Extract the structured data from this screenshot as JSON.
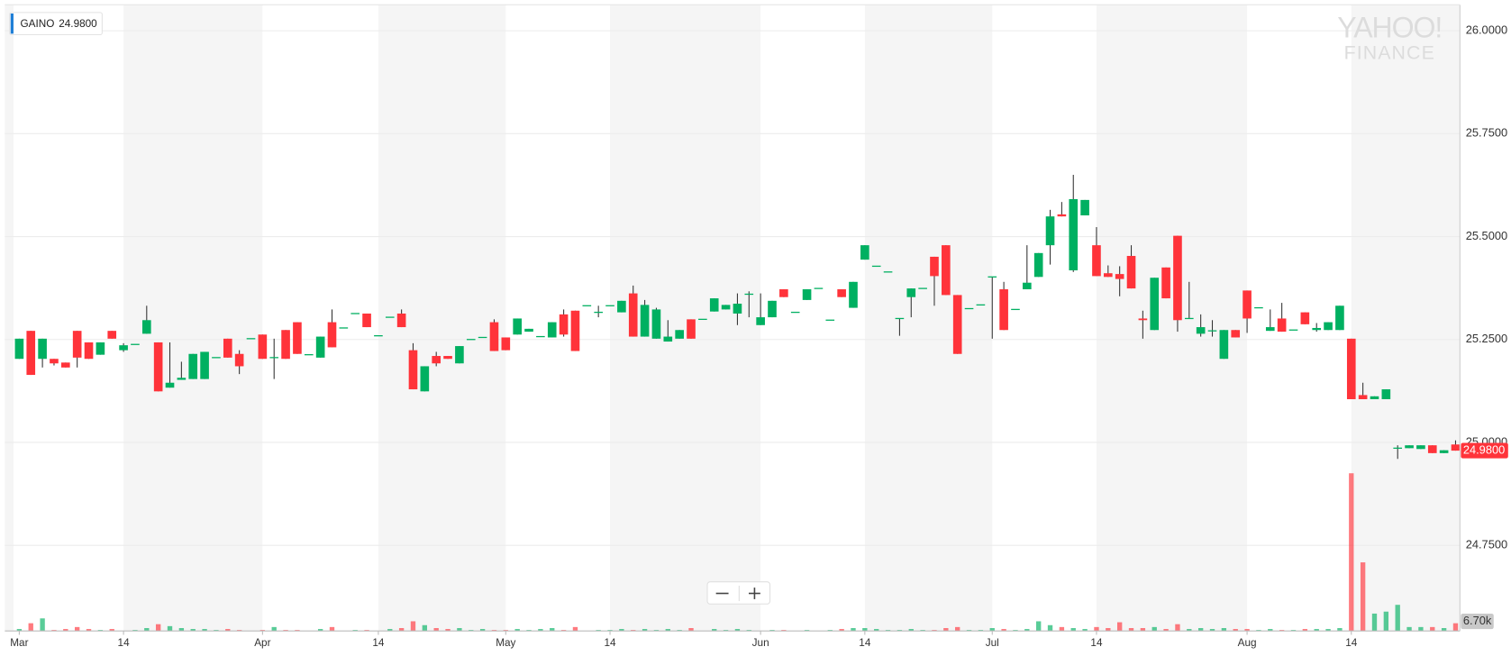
{
  "chart_data": {
    "type": "candlestick",
    "watermark": [
      "YAHOO!",
      "FINANCE"
    ],
    "categories": [
      "Mar",
      null,
      null,
      null,
      null,
      null,
      null,
      null,
      null,
      "14",
      null,
      null,
      null,
      null,
      null,
      null,
      null,
      null,
      null,
      null,
      null,
      "Apr",
      null,
      null,
      null,
      null,
      null,
      null,
      null,
      null,
      null,
      "14",
      null,
      null,
      null,
      null,
      null,
      null,
      null,
      null,
      null,
      null,
      "May",
      null,
      null,
      null,
      null,
      null,
      null,
      null,
      null,
      "14",
      null,
      null,
      null,
      null,
      null,
      null,
      null,
      null,
      null,
      null,
      null,
      null,
      "Jun",
      null,
      null,
      null,
      null,
      null,
      null,
      null,
      null,
      "14",
      null,
      null,
      null,
      null,
      null,
      null,
      null,
      null,
      null,
      null,
      "Jul",
      null,
      null,
      null,
      null,
      null,
      null,
      null,
      null,
      "14",
      null,
      null,
      null,
      null,
      null,
      null,
      null,
      null,
      null,
      null,
      null,
      null,
      "Aug",
      null,
      null,
      null,
      null,
      null,
      null,
      null,
      null,
      "14",
      null,
      null,
      null,
      null,
      null,
      null,
      null,
      null,
      null
    ],
    "ylim": [
      24.542,
      26.063
    ],
    "yticks": [
      {
        "value": 24.75,
        "label": "24.7500"
      },
      {
        "value": 25.0,
        "label": "25.0000"
      },
      {
        "value": 25.25,
        "label": "25.2500"
      },
      {
        "value": 25.5,
        "label": "25.5000"
      },
      {
        "value": 25.75,
        "label": "25.7500"
      },
      {
        "value": 26.0,
        "label": "26.0000"
      }
    ],
    "y2lim": [
      0,
      544000
    ],
    "grid": true,
    "series": [
      {
        "name": "GAINO",
        "up_color": "#00b061",
        "down_color": "#ff333a",
        "value_label": "24.9800",
        "volume_label": "6.70k",
        "open": [
          25.203,
          25.271,
          25.203,
          25.203,
          25.194,
          25.271,
          25.243,
          25.213,
          25.271,
          25.224,
          25.238,
          25.264,
          25.243,
          25.133,
          25.152,
          25.154,
          25.154,
          25.206,
          25.252,
          25.215,
          25.252,
          25.262,
          25.206,
          25.273,
          25.292,
          25.213,
          25.206,
          25.292,
          25.278,
          25.313,
          25.313,
          25.259,
          25.304,
          25.313,
          25.224,
          25.124,
          25.21,
          25.21,
          25.192,
          25.25,
          25.255,
          25.292,
          25.255,
          25.262,
          25.269,
          25.257,
          25.255,
          25.311,
          25.32,
          25.332,
          25.316,
          25.332,
          25.316,
          25.362,
          25.257,
          25.252,
          25.245,
          25.252,
          25.299,
          25.299,
          25.318,
          25.323,
          25.313,
          25.36,
          25.285,
          25.304,
          25.372,
          25.316,
          25.346,
          25.374,
          25.297,
          25.372,
          25.327,
          25.444,
          25.428,
          25.414,
          25.301,
          25.353,
          25.374,
          25.451,
          25.479,
          25.358,
          25.325,
          25.334,
          25.402,
          25.372,
          25.323,
          25.372,
          25.402,
          25.479,
          25.554,
          25.418,
          25.5515,
          25.479,
          25.411,
          25.409,
          25.453,
          25.301,
          25.273,
          25.425,
          25.502,
          25.301,
          25.264,
          25.271,
          25.203,
          25.273,
          25.369,
          25.327,
          25.271,
          25.301,
          25.273,
          25.316,
          25.273,
          25.273,
          25.273,
          25.252,
          25.115,
          25.105,
          25.105,
          24.986,
          24.986,
          24.984,
          24.993,
          24.974,
          24.995
        ],
        "high": [
          25.252,
          25.271,
          25.252,
          25.203,
          25.194,
          25.271,
          25.243,
          25.243,
          25.271,
          25.241,
          25.238,
          25.332,
          25.243,
          25.243,
          25.196,
          25.215,
          25.22,
          25.206,
          25.252,
          25.224,
          25.252,
          25.262,
          25.252,
          25.273,
          25.292,
          25.213,
          25.257,
          25.323,
          25.278,
          25.313,
          25.313,
          25.259,
          25.304,
          25.323,
          25.241,
          25.185,
          25.22,
          25.21,
          25.234,
          25.25,
          25.255,
          25.299,
          25.255,
          25.301,
          25.276,
          25.257,
          25.292,
          25.323,
          25.32,
          25.332,
          25.332,
          25.332,
          25.344,
          25.381,
          25.346,
          25.327,
          25.297,
          25.273,
          25.299,
          25.299,
          25.35,
          25.334,
          25.362,
          25.367,
          25.362,
          25.344,
          25.372,
          25.316,
          25.372,
          25.374,
          25.297,
          25.372,
          25.39,
          25.479,
          25.428,
          25.414,
          25.301,
          25.374,
          25.374,
          25.451,
          25.479,
          25.358,
          25.325,
          25.334,
          25.402,
          25.39,
          25.323,
          25.479,
          25.46,
          25.565,
          25.584,
          25.65,
          25.589,
          25.523,
          25.43,
          25.428,
          25.479,
          25.32,
          25.4,
          25.425,
          25.502,
          25.39,
          25.311,
          25.297,
          25.273,
          25.273,
          25.369,
          25.327,
          25.323,
          25.339,
          25.273,
          25.316,
          25.29,
          25.292,
          25.332,
          25.252,
          25.145,
          25.112,
          25.129,
          24.993,
          24.993,
          24.993,
          24.993,
          24.981,
          25.005
        ],
        "low": [
          25.203,
          25.164,
          25.182,
          25.187,
          25.182,
          25.182,
          25.203,
          25.213,
          25.252,
          25.22,
          25.238,
          25.264,
          25.124,
          25.133,
          25.152,
          25.154,
          25.154,
          25.206,
          25.206,
          25.166,
          25.252,
          25.203,
          25.154,
          25.203,
          25.215,
          25.213,
          25.206,
          25.231,
          25.278,
          25.313,
          25.28,
          25.259,
          25.304,
          25.28,
          25.129,
          25.124,
          25.185,
          25.203,
          25.192,
          25.25,
          25.255,
          25.222,
          25.224,
          25.262,
          25.269,
          25.257,
          25.255,
          25.257,
          25.222,
          25.332,
          25.304,
          25.332,
          25.316,
          25.257,
          25.257,
          25.252,
          25.245,
          25.252,
          25.252,
          25.299,
          25.318,
          25.323,
          25.285,
          25.304,
          25.285,
          25.304,
          25.353,
          25.316,
          25.346,
          25.374,
          25.297,
          25.353,
          25.327,
          25.444,
          25.428,
          25.414,
          25.259,
          25.304,
          25.374,
          25.332,
          25.358,
          25.215,
          25.325,
          25.334,
          25.252,
          25.273,
          25.323,
          25.372,
          25.402,
          25.432,
          25.549,
          25.414,
          25.5515,
          25.404,
          25.402,
          25.355,
          25.374,
          25.252,
          25.273,
          25.35,
          25.269,
          25.301,
          25.257,
          25.257,
          25.203,
          25.255,
          25.266,
          25.327,
          25.271,
          25.269,
          25.273,
          25.287,
          25.269,
          25.273,
          25.273,
          25.105,
          25.105,
          25.105,
          25.105,
          24.96,
          24.986,
          24.984,
          24.974,
          24.974,
          24.98
        ],
        "close": [
          25.252,
          25.164,
          25.252,
          25.192,
          25.182,
          25.206,
          25.203,
          25.243,
          25.252,
          25.236,
          25.238,
          25.297,
          25.124,
          25.145,
          25.157,
          25.215,
          25.22,
          25.206,
          25.206,
          25.185,
          25.252,
          25.203,
          25.206,
          25.203,
          25.215,
          25.213,
          25.257,
          25.231,
          25.278,
          25.313,
          25.28,
          25.259,
          25.304,
          25.28,
          25.129,
          25.185,
          25.192,
          25.203,
          25.234,
          25.25,
          25.255,
          25.222,
          25.224,
          25.301,
          25.276,
          25.257,
          25.292,
          25.262,
          25.222,
          25.332,
          25.316,
          25.332,
          25.344,
          25.257,
          25.334,
          25.323,
          25.257,
          25.273,
          25.252,
          25.299,
          25.35,
          25.334,
          25.337,
          25.36,
          25.304,
          25.344,
          25.353,
          25.316,
          25.372,
          25.374,
          25.297,
          25.353,
          25.39,
          25.479,
          25.428,
          25.414,
          25.301,
          25.374,
          25.374,
          25.404,
          25.358,
          25.215,
          25.325,
          25.334,
          25.402,
          25.273,
          25.323,
          25.388,
          25.46,
          25.549,
          25.549,
          25.591,
          25.589,
          25.404,
          25.402,
          25.397,
          25.374,
          25.297,
          25.4,
          25.35,
          25.297,
          25.301,
          25.28,
          25.271,
          25.273,
          25.255,
          25.301,
          25.327,
          25.28,
          25.269,
          25.273,
          25.287,
          25.278,
          25.292,
          25.332,
          25.105,
          25.105,
          25.112,
          25.129,
          24.986,
          24.993,
          24.993,
          24.974,
          24.981,
          24.98
        ],
        "volume": [
          1700,
          6720,
          10920,
          850,
          1700,
          3400,
          1700,
          850,
          1700,
          0,
          850,
          2500,
          5880,
          4200,
          2500,
          1700,
          1700,
          850,
          1700,
          850,
          0,
          850,
          3400,
          850,
          850,
          0,
          1700,
          3400,
          0,
          850,
          850,
          0,
          1700,
          2500,
          8400,
          5040,
          2500,
          1700,
          2500,
          850,
          1700,
          850,
          850,
          1700,
          850,
          1700,
          2500,
          850,
          3400,
          0,
          850,
          850,
          1700,
          850,
          1700,
          850,
          1700,
          850,
          2500,
          0,
          1700,
          850,
          1700,
          850,
          0,
          850,
          850,
          0,
          850,
          0,
          850,
          1700,
          2500,
          2500,
          1700,
          850,
          850,
          1700,
          850,
          850,
          2500,
          3400,
          850,
          850,
          2500,
          1700,
          850,
          1700,
          8400,
          5040,
          3400,
          2500,
          1700,
          3400,
          2500,
          7560,
          2500,
          2500,
          3400,
          1700,
          5880,
          1700,
          2500,
          1700,
          2500,
          1700,
          1700,
          850,
          1700,
          850,
          850,
          1700,
          1700,
          1700,
          2500,
          137000,
          59600,
          15100,
          16800,
          22700,
          3400,
          3400,
          3400,
          2500,
          6700
        ]
      }
    ]
  }
}
